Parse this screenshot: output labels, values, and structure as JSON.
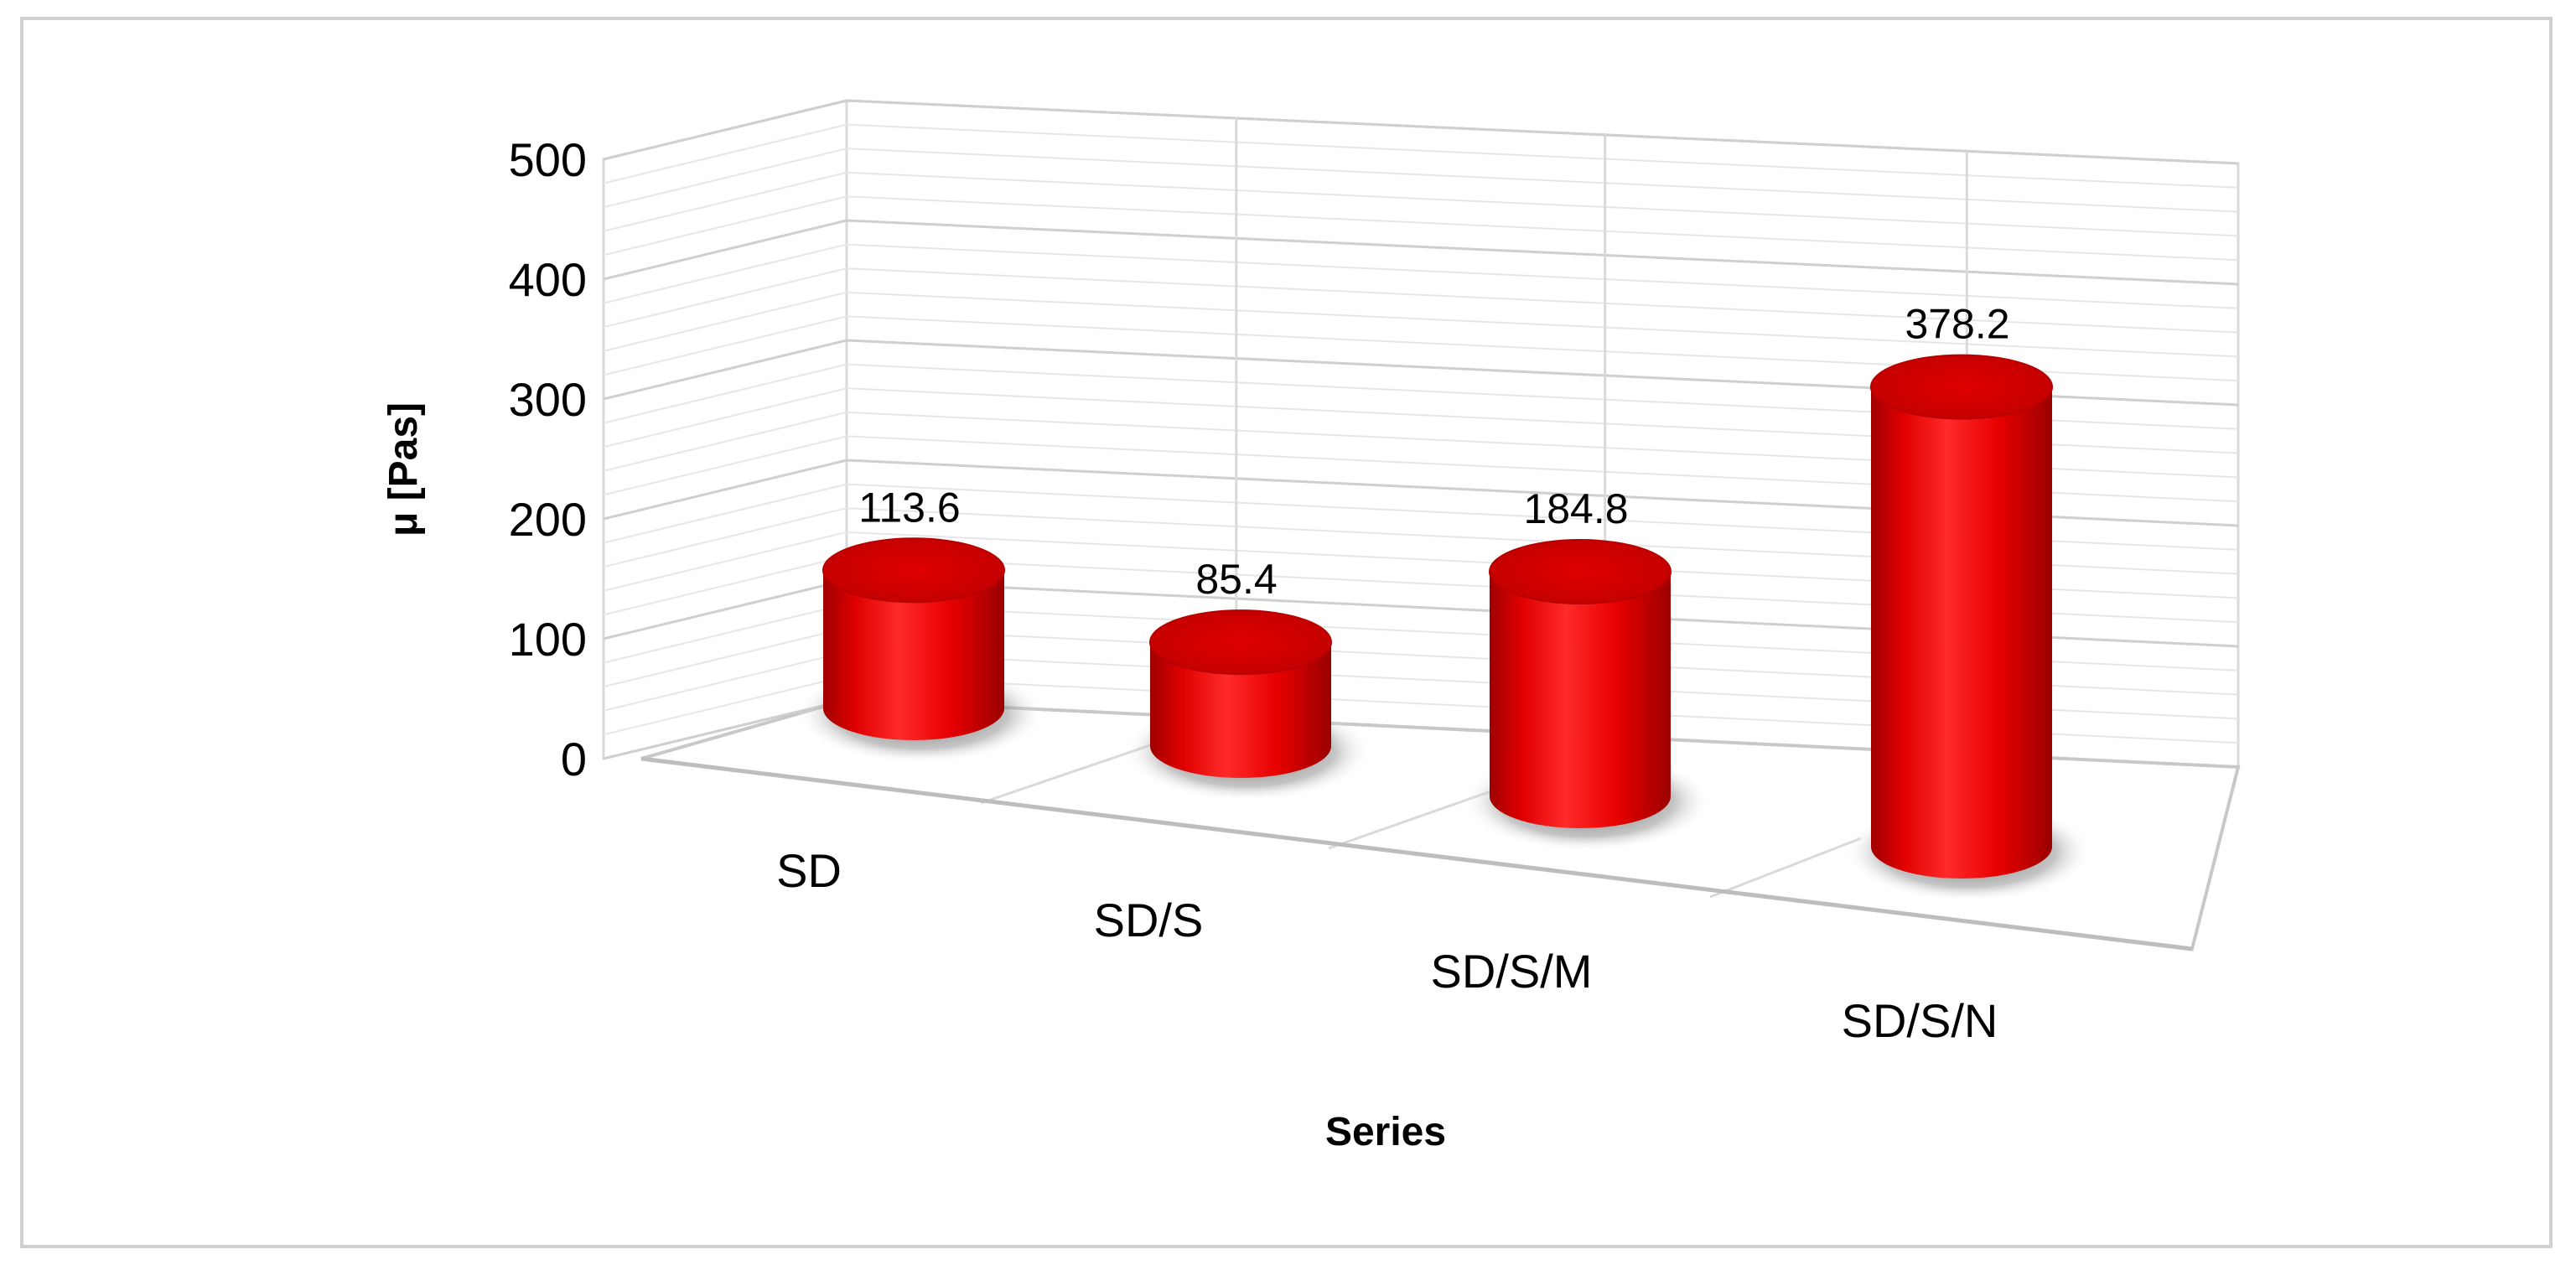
{
  "chart_data": {
    "type": "bar",
    "style": "3d-cylinder",
    "categories": [
      "SD",
      "SD/S",
      "SD/S/M",
      "SD/S/N"
    ],
    "series": [
      {
        "values": [
          113.6,
          85.4,
          184.8,
          378.2
        ],
        "color": "#ff0000"
      }
    ],
    "data_labels": [
      "113.6",
      "85.4",
      "184.8",
      "378.2"
    ],
    "xlabel": "Series",
    "ylabel": "μ [Pas]",
    "ylim": [
      0,
      500
    ],
    "yticks": [
      "0",
      "100",
      "200",
      "300",
      "400",
      "500"
    ],
    "grid": true,
    "legend": false
  }
}
